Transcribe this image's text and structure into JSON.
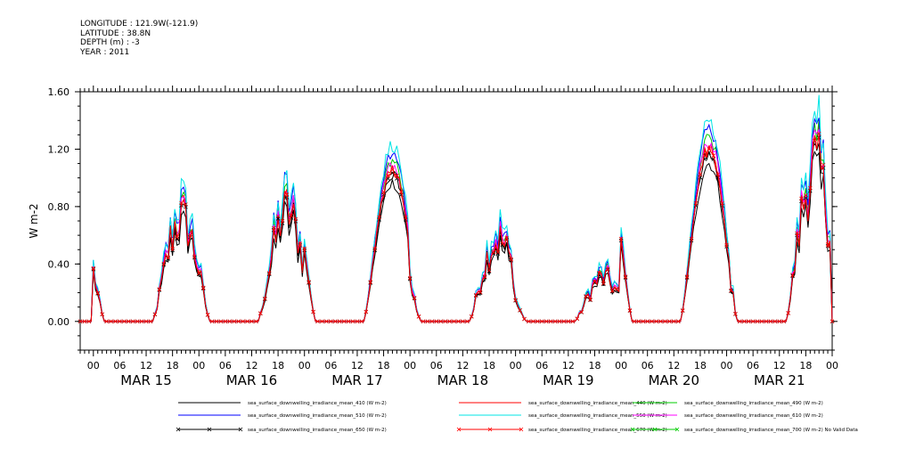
{
  "header": {
    "lines": [
      "LONGITUDE : 121.9W(-121.9)",
      "LATITUDE : 38.8N",
      "DEPTH (m) : -3",
      "YEAR : 2011"
    ]
  },
  "chart_data": {
    "type": "line",
    "title": "",
    "xlabel": "",
    "ylabel": "W m-2",
    "ylim": [
      -0.2,
      1.6
    ],
    "yticks": [
      0.0,
      0.4,
      0.8,
      1.2,
      1.6
    ],
    "ytick_labels": [
      "0.00",
      "0.40",
      "0.80",
      "1.20",
      "1.60"
    ],
    "hour_tick_labels": [
      "00",
      "06",
      "12",
      "18"
    ],
    "day_labels": [
      "MAR 15",
      "MAR 16",
      "MAR 17",
      "MAR 18",
      "MAR 19",
      "MAR 20",
      "MAR 21"
    ],
    "x_range_hours": [
      -3,
      168
    ],
    "day_peaks": [
      {
        "day": "MAR 15",
        "peak": 0.9
      },
      {
        "day": "MAR 16",
        "peak": 0.95
      },
      {
        "day": "MAR 17",
        "peak": 1.1
      },
      {
        "day": "MAR 18",
        "peak": 0.72
      },
      {
        "day": "MAR 19",
        "peak": 0.38
      },
      {
        "day": "MAR 20",
        "peak": 1.25
      },
      {
        "day": "MAR 21",
        "peak": 1.35
      }
    ],
    "series": [
      {
        "name": "sea_surface_downwelling_irradiance_mean_410 (W m-2)",
        "color": "#000000",
        "scale": 0.88,
        "marker": false
      },
      {
        "name": "sea_surface_downwelling_irradiance_mean_440 (W m-2)",
        "color": "#ff0000",
        "scale": 0.97,
        "marker": false
      },
      {
        "name": "sea_surface_downwelling_irradiance_mean_490 (W m-2)",
        "color": "#00cc00",
        "scale": 1.02,
        "marker": false
      },
      {
        "name": "sea_surface_downwelling_irradiance_mean_510 (W m-2)",
        "color": "#0000ff",
        "scale": 1.08,
        "marker": false
      },
      {
        "name": "sea_surface_downwelling_irradiance_mean_550 (W m-2)",
        "color": "#00e5e5",
        "scale": 1.12,
        "marker": false
      },
      {
        "name": "sea_surface_downwelling_irradiance_mean_610 (W m-2)",
        "color": "#ff00ff",
        "scale": 1.0,
        "marker": false
      },
      {
        "name": "sea_surface_downwelling_irradiance_mean_650 (W m-2)",
        "color": "#000000",
        "scale": 0.94,
        "marker": true
      },
      {
        "name": "sea_surface_downwelling_irradiance_mean_670 (W m-2)",
        "color": "#ff0000",
        "scale": 0.96,
        "marker": true
      },
      {
        "name": "sea_surface_downwelling_irradiance_mean_700 (W m-2) No Valid Data",
        "color": "#00cc00",
        "scale": 0,
        "marker": true
      }
    ]
  }
}
